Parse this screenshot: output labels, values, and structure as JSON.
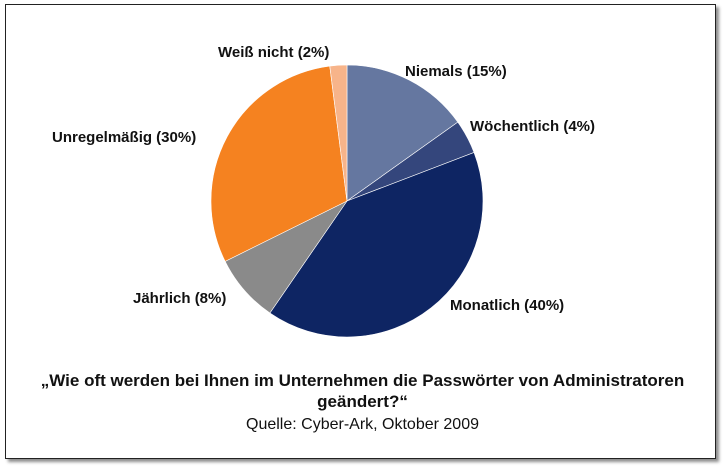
{
  "chart_data": {
    "type": "pie",
    "categories": [
      "Niemals",
      "Wöchentlich",
      "Monatlich",
      "Jährlich",
      "Unregelmäßig",
      "Weiß nicht"
    ],
    "values": [
      15,
      4,
      40,
      8,
      30,
      2
    ],
    "labels": [
      "Niemals (15%)",
      "Wöchentlich (4%)",
      "Monatlich (40%)",
      "Jährlich (8%)",
      "Unregelmäßig (30%)",
      "Weiß nicht (2%)"
    ],
    "colors": [
      "#6577a0",
      "#34467c",
      "#0e2563",
      "#8a8a8a",
      "#f58220",
      "#f7b48a"
    ],
    "title": "„Wie oft werden bei Ihnen im Unternehmen die Passwörter von Administratoren geändert?“",
    "source": "Quelle: Cyber-Ark, Oktober 2009",
    "start": "12 o'clock",
    "direction": "clockwise"
  }
}
